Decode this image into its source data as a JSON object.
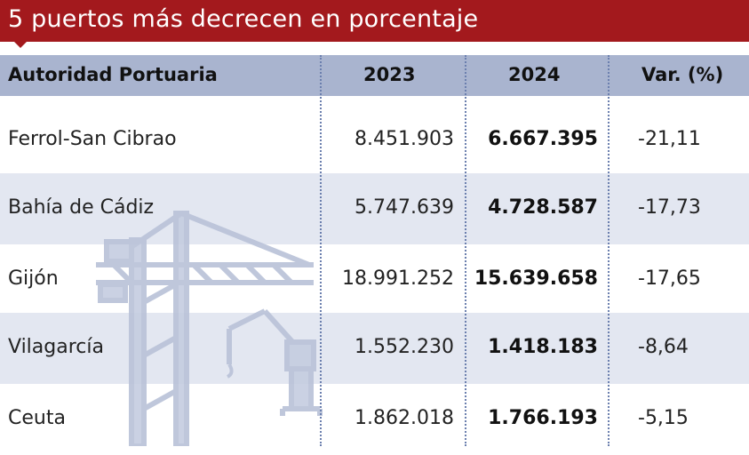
{
  "title": "5 puertos más decrecen en porcentaje",
  "columns": {
    "authority": "Autoridad Portuaria",
    "y2023": "2023",
    "y2024": "2024",
    "var": "Var. (%)"
  },
  "rows": [
    {
      "name": "Ferrol-San Cibrao",
      "v2023": "8.451.903",
      "v2024": "6.667.395",
      "var": "-21,11"
    },
    {
      "name": "Bahía de Cádiz",
      "v2023": "5.747.639",
      "v2024": "4.728.587",
      "var": "-17,73"
    },
    {
      "name": "Gijón",
      "v2023": "18.991.252",
      "v2024": "15.639.658",
      "var": "-17,65"
    },
    {
      "name": "Vilagarcía",
      "v2023": "1.552.230",
      "v2024": "1.418.183",
      "var": "-8,64"
    },
    {
      "name": "Ceuta",
      "v2023": "1.862.018",
      "v2024": "1.766.193",
      "var": "-5,15"
    }
  ],
  "colors": {
    "title_bg": "#a3191d",
    "header_bg": "#a9b4cf",
    "stripe_bg": "#e3e7f1",
    "crane": "#b9c2d8"
  },
  "icons": [
    "crane-illustration"
  ]
}
